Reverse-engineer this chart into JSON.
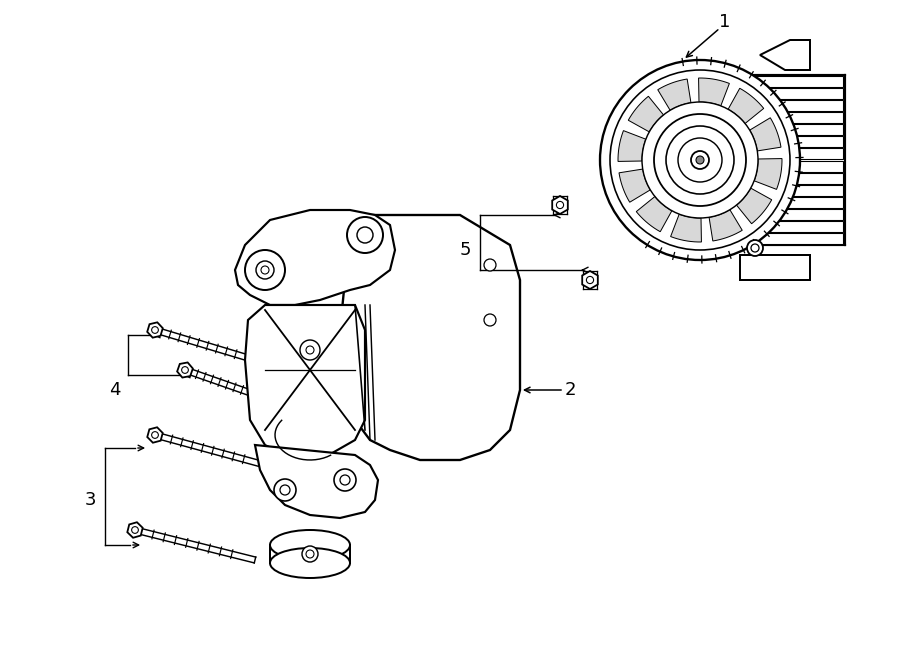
{
  "background_color": "#ffffff",
  "line_color": "#000000",
  "lw": 1.3,
  "fig_width": 9.0,
  "fig_height": 6.61,
  "dpi": 100,
  "label_fontsize": 13,
  "label_fontsize_sm": 11
}
